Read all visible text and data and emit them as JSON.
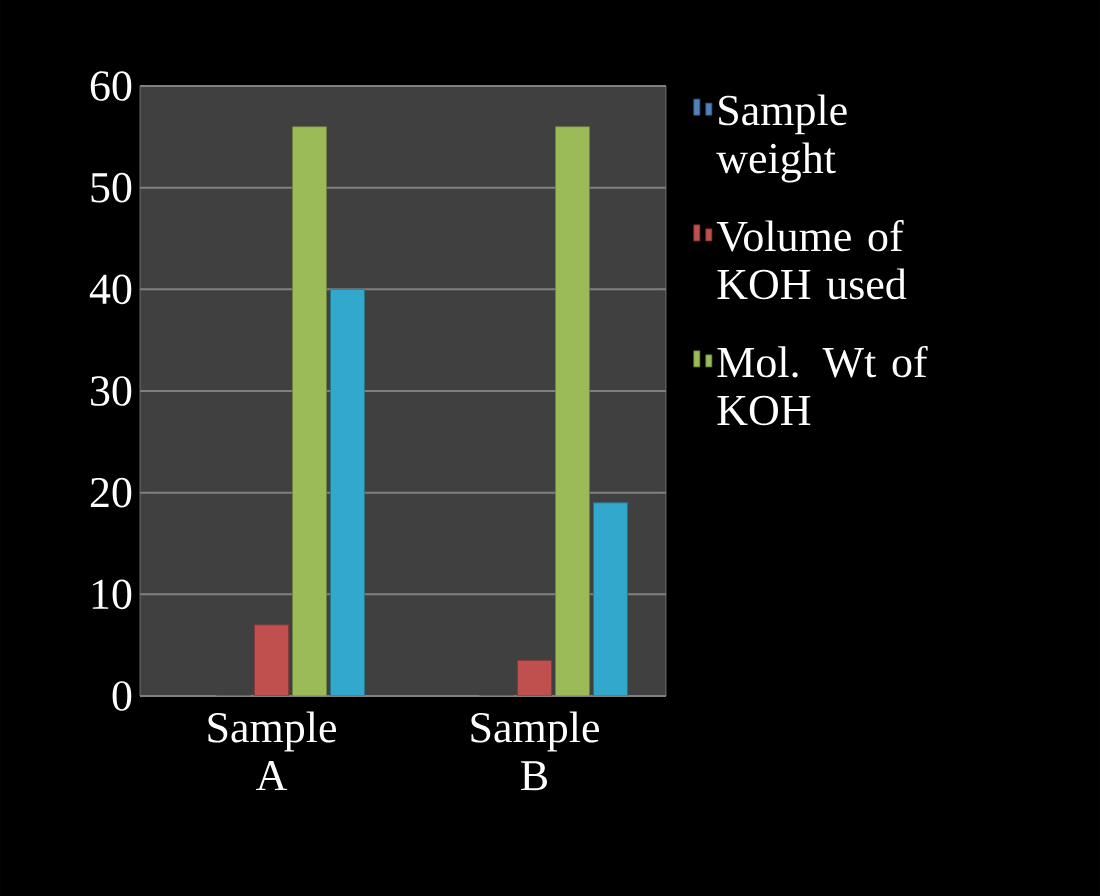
{
  "chart_data": {
    "type": "bar",
    "categories": [
      "Sample A",
      "Sample B"
    ],
    "series": [
      {
        "name": "Sample weight",
        "color": "#4f81bd",
        "values": [
          0,
          0
        ]
      },
      {
        "name": "Volume of KOH used",
        "color": "#c0504d",
        "values": [
          7,
          3.5
        ]
      },
      {
        "name": "Mol. Wt of KOH",
        "color": "#9bbb59",
        "values": [
          56,
          56
        ]
      },
      {
        "color": "#31a8cc",
        "values": [
          40,
          19
        ]
      }
    ],
    "ylim": [
      0,
      60
    ],
    "yticks": [
      0,
      10,
      20,
      30,
      40,
      50,
      60
    ],
    "grid": "y",
    "legend": "right"
  }
}
